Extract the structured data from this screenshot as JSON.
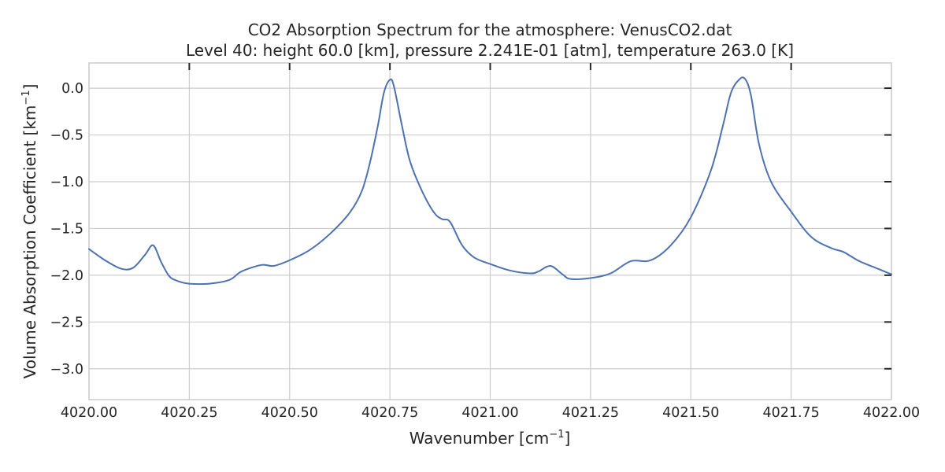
{
  "chart_data": {
    "type": "line",
    "title": "CO2 Absorption Spectrum for the atmosphere: VenusCO2.dat",
    "subtitle": "Level 40: height 60.0 [km], pressure 2.241E-01 [atm], temperature 263.0 [K]",
    "xlabel": "Wavenumber [cm",
    "xlabel_sup": "−1",
    "xlabel_end": "]",
    "ylabel": "Volume Absorption Coefficient [km",
    "ylabel_sup": "−1",
    "ylabel_end": "]",
    "xlim": [
      4020.0,
      4022.0
    ],
    "ylim": [
      -3.33,
      0.27
    ],
    "grid": true,
    "x_ticks": [
      4020.0,
      4020.25,
      4020.5,
      4020.75,
      4021.0,
      4021.25,
      4021.5,
      4021.75,
      4022.0
    ],
    "x_tick_labels": [
      "4020.00",
      "4020.25",
      "4020.50",
      "4020.75",
      "4021.00",
      "4021.25",
      "4021.50",
      "4021.75",
      "4022.00"
    ],
    "y_ticks": [
      0.0,
      -0.5,
      -1.0,
      -1.5,
      -2.0,
      -2.5,
      -3.0
    ],
    "y_tick_labels": [
      "0.0",
      "−0.5",
      "−1.0",
      "−1.5",
      "−2.0",
      "−2.5",
      "−3.0"
    ],
    "line_color": "#4c72b0",
    "x": [
      4020.0,
      4020.04,
      4020.08,
      4020.11,
      4020.14,
      4020.16,
      4020.18,
      4020.2,
      4020.22,
      4020.25,
      4020.3,
      4020.35,
      4020.38,
      4020.43,
      4020.46,
      4020.5,
      4020.55,
      4020.6,
      4020.65,
      4020.68,
      4020.7,
      4020.72,
      4020.735,
      4020.75,
      4020.76,
      4020.78,
      4020.8,
      4020.83,
      4020.86,
      4020.88,
      4020.9,
      4020.93,
      4020.96,
      4021.0,
      4021.05,
      4021.1,
      4021.12,
      4021.15,
      4021.18,
      4021.2,
      4021.25,
      4021.3,
      4021.35,
      4021.4,
      4021.45,
      4021.5,
      4021.55,
      4021.58,
      4021.6,
      4021.62,
      4021.635,
      4021.65,
      4021.67,
      4021.7,
      4021.75,
      4021.8,
      4021.85,
      4021.88,
      4021.92,
      4021.96,
      4022.0
    ],
    "y": [
      -1.72,
      -1.84,
      -1.93,
      -1.92,
      -1.78,
      -1.68,
      -1.86,
      -2.01,
      -2.06,
      -2.09,
      -2.09,
      -2.05,
      -1.96,
      -1.89,
      -1.9,
      -1.84,
      -1.73,
      -1.56,
      -1.33,
      -1.1,
      -0.8,
      -0.4,
      -0.05,
      0.09,
      0.02,
      -0.4,
      -0.78,
      -1.1,
      -1.33,
      -1.4,
      -1.43,
      -1.68,
      -1.81,
      -1.88,
      -1.95,
      -1.98,
      -1.96,
      -1.9,
      -1.99,
      -2.04,
      -2.03,
      -1.98,
      -1.85,
      -1.84,
      -1.68,
      -1.38,
      -0.88,
      -0.4,
      -0.05,
      0.09,
      0.1,
      -0.08,
      -0.6,
      -1.0,
      -1.32,
      -1.59,
      -1.71,
      -1.75,
      -1.85,
      -1.92,
      -1.99
    ]
  }
}
